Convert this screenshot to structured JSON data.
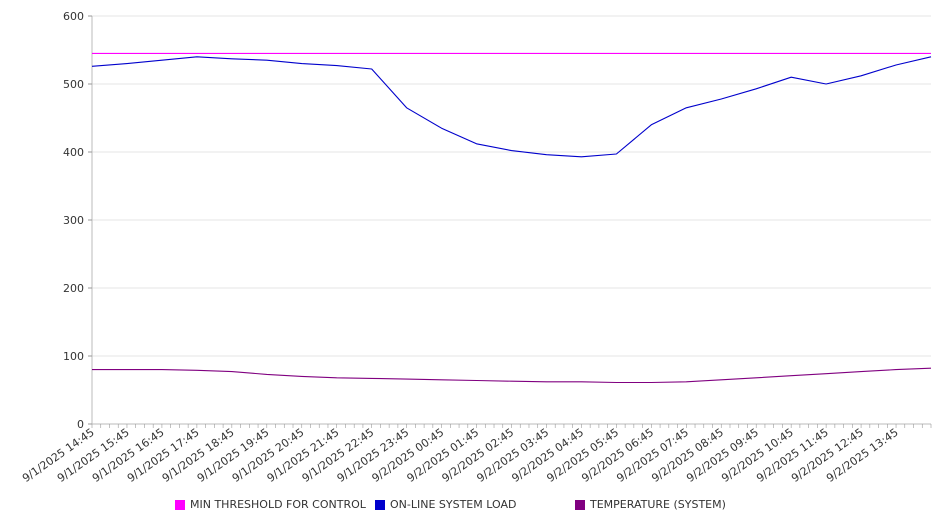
{
  "chart_data": {
    "type": "line",
    "ylim": [
      0,
      600
    ],
    "yticks": [
      0,
      100,
      200,
      300,
      400,
      500,
      600
    ],
    "grid": true,
    "legend_position": "bottom",
    "x_tick_labels": [
      "9/1/2025 14:45",
      "9/1/2025 15:45",
      "9/1/2025 16:45",
      "9/1/2025 17:45",
      "9/1/2025 18:45",
      "9/1/2025 19:45",
      "9/1/2025 20:45",
      "9/1/2025 21:45",
      "9/1/2025 22:45",
      "9/1/2025 23:45",
      "9/2/2025 00:45",
      "9/2/2025 01:45",
      "9/2/2025 02:45",
      "9/2/2025 03:45",
      "9/2/2025 04:45",
      "9/2/2025 05:45",
      "9/2/2025 06:45",
      "9/2/2025 07:45",
      "9/2/2025 08:45",
      "9/2/2025 09:45",
      "9/2/2025 10:45",
      "9/2/2025 11:45",
      "9/2/2025 12:45",
      "9/2/2025 13:45"
    ],
    "x_hours": [
      0,
      1,
      2,
      3,
      4,
      5,
      6,
      7,
      8,
      9,
      10,
      11,
      12,
      13,
      14,
      15,
      16,
      17,
      18,
      19,
      20,
      21,
      22,
      23,
      24
    ],
    "series": [
      {
        "name": "MIN THRESHOLD FOR CONTROL",
        "color": "#ff00ff",
        "values": [
          545,
          545,
          545,
          545,
          545,
          545,
          545,
          545,
          545,
          545,
          545,
          545,
          545,
          545,
          545,
          545,
          545,
          545,
          545,
          545,
          545,
          545,
          545,
          545,
          545
        ]
      },
      {
        "name": "ON-LINE SYSTEM LOAD",
        "color": "#0000cc",
        "values": [
          526,
          530,
          535,
          540,
          537,
          535,
          530,
          527,
          522,
          465,
          435,
          412,
          402,
          396,
          393,
          397,
          440,
          465,
          478,
          493,
          510,
          500,
          512,
          528,
          540
        ]
      },
      {
        "name": "TEMPERATURE (SYSTEM)",
        "color": "#800080",
        "values": [
          80,
          80,
          80,
          79,
          77,
          73,
          70,
          68,
          67,
          66,
          65,
          64,
          63,
          62,
          62,
          61,
          61,
          62,
          65,
          68,
          71,
          74,
          77,
          80,
          82
        ]
      }
    ]
  }
}
